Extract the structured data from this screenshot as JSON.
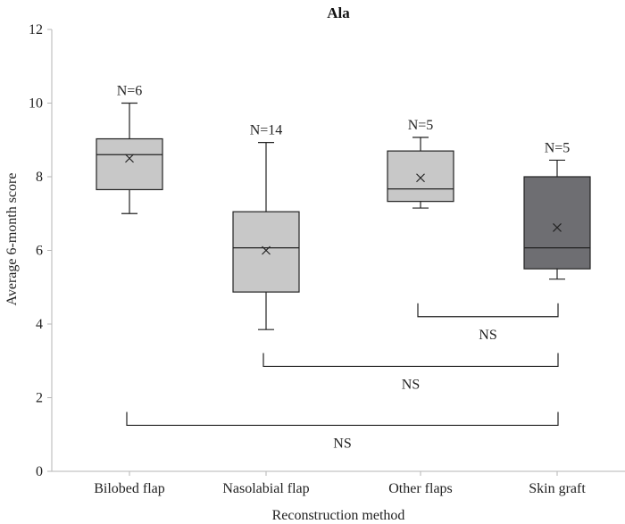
{
  "chart_data": {
    "type": "box",
    "title": "Ala",
    "xlabel": "Reconstruction method",
    "ylabel": "Average 6-month score",
    "ylim": [
      0,
      12
    ],
    "yticks": [
      0,
      2,
      4,
      6,
      8,
      10,
      12
    ],
    "grid": false,
    "categories": [
      "Bilobed flap",
      "Nasolabial flap",
      "Other flaps",
      "Skin graft"
    ],
    "boxes": [
      {
        "category": "Bilobed flap",
        "n_label": "N=6",
        "min": 7.0,
        "q1": 7.65,
        "median": 8.6,
        "q3": 9.03,
        "max": 10.0,
        "mean": 8.5,
        "fill": "#c8c8c8"
      },
      {
        "category": "Nasolabial flap",
        "n_label": "N=14",
        "min": 3.85,
        "q1": 4.87,
        "median": 6.07,
        "q3": 7.05,
        "max": 8.93,
        "mean": 6.0,
        "fill": "#c8c8c8"
      },
      {
        "category": "Other flaps",
        "n_label": "N=5",
        "min": 7.15,
        "q1": 7.33,
        "median": 7.67,
        "q3": 8.7,
        "max": 9.07,
        "mean": 7.97,
        "fill": "#c8c8c8"
      },
      {
        "category": "Skin graft",
        "n_label": "N=5",
        "min": 5.22,
        "q1": 5.5,
        "median": 6.07,
        "q3": 8.0,
        "max": 8.45,
        "mean": 6.62,
        "fill": "#6e6e72"
      }
    ],
    "comparisons": [
      {
        "from": "Other flaps",
        "to": "Skin graft",
        "y": 4.2,
        "label": "NS"
      },
      {
        "from": "Nasolabial flap",
        "to": "Skin graft",
        "y": 2.85,
        "label": "NS"
      },
      {
        "from": "Bilobed flap",
        "to": "Skin graft",
        "y": 1.25,
        "label": "NS"
      }
    ]
  }
}
